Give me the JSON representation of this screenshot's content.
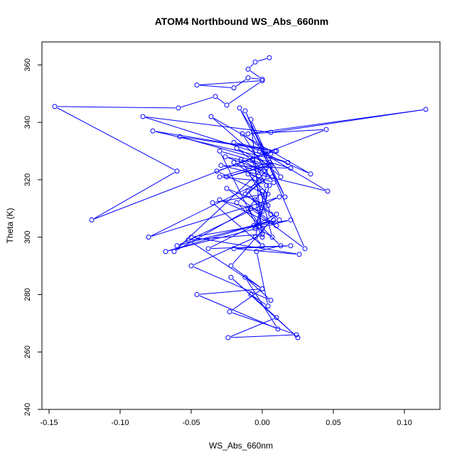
{
  "chart_data": {
    "type": "line",
    "title": "ATOM4 Northbound WS_Abs_660nm",
    "xlabel": "WS_Abs_660nm",
    "ylabel": "Theta (K)",
    "xlim": [
      -0.155,
      0.125
    ],
    "ylim": [
      240,
      368
    ],
    "xticks": [
      -0.15,
      -0.1,
      -0.05,
      0.0,
      0.05,
      0.1
    ],
    "xtick_labels": [
      "-0.15",
      "-0.10",
      "-0.05",
      "0.00",
      "0.05",
      "0.10"
    ],
    "yticks": [
      240,
      260,
      280,
      300,
      320,
      340,
      360
    ],
    "ytick_labels": [
      "240",
      "260",
      "280",
      "300",
      "320",
      "340",
      "360"
    ],
    "grid": false,
    "series_color": "#0000ff",
    "marker": "open-circle",
    "series": [
      {
        "x": [
          0.005,
          -0.005,
          -0.01,
          0.0,
          -0.01,
          -0.02,
          -0.046,
          0.0,
          -0.025,
          -0.033,
          -0.059,
          -0.146,
          -0.06,
          -0.12,
          0.045,
          -0.01,
          0.115,
          0.006,
          -0.084,
          0.018,
          -0.077,
          0.01,
          -0.058,
          0.02,
          -0.029,
          0.046,
          -0.002,
          0.034,
          -0.036,
          0.013,
          -0.016,
          0.016,
          -0.012,
          0.03,
          -0.008,
          -0.062,
          0.005,
          -0.03,
          0.0,
          -0.08,
          0.012,
          -0.06,
          0.008,
          -0.068,
          0.02,
          -0.05,
          0.026,
          -0.02,
          0.02,
          -0.038,
          0.01,
          -0.022,
          0.0,
          -0.052,
          0.0,
          -0.05,
          0.006,
          -0.012,
          0.011,
          -0.046,
          0.0,
          -0.023,
          0.024,
          -0.024,
          0.01,
          -0.022,
          0.025,
          -0.008,
          0.004,
          -0.004,
          0.013,
          -0.018,
          0.004,
          -0.012,
          0.006,
          0.0,
          -0.01,
          0.0,
          -0.005,
          0.012,
          -0.006,
          0.007,
          -0.007,
          0.003,
          -0.005,
          0.004,
          -0.01,
          0.008,
          -0.014,
          0.002,
          -0.008,
          0.0,
          -0.03,
          0.005,
          -0.018,
          0.002,
          -0.026,
          0.003,
          -0.025,
          0.006,
          -0.01,
          0.0,
          -0.03,
          0.01,
          -0.025,
          0.004,
          -0.015,
          0.007,
          -0.02,
          0.005,
          -0.005,
          0.0,
          -0.035,
          0.002,
          -0.032,
          0.009,
          -0.02,
          0.006
        ],
        "y": [
          362.5,
          361,
          358.5,
          355,
          355.5,
          352,
          353,
          354.5,
          346,
          349,
          345,
          345.5,
          323,
          306,
          337.5,
          336,
          344.5,
          336.5,
          342,
          326,
          337,
          330,
          335,
          324,
          325,
          316,
          330,
          322,
          342,
          321,
          345,
          314,
          344,
          296,
          310,
          295,
          326,
          321,
          319.5,
          300,
          314,
          297,
          306,
          295,
          306,
          300,
          294,
          296,
          297,
          296,
          308,
          290,
          282,
          299,
          301,
          290,
          278,
          286,
          268,
          280,
          282,
          274,
          266,
          265,
          272,
          286,
          265,
          280,
          276,
          295,
          297,
          312,
          321,
          315,
          308,
          316,
          310,
          303,
          313,
          306,
          304,
          300,
          327,
          318,
          303,
          315,
          322,
          319,
          336,
          330,
          341,
          300,
          330,
          325,
          331,
          323,
          328,
          325,
          321,
          325,
          316,
          309,
          313,
          304,
          317,
          311,
          327,
          321,
          326,
          318,
          300,
          297,
          312,
          315,
          323,
          330,
          333,
          329
        ]
      }
    ]
  }
}
